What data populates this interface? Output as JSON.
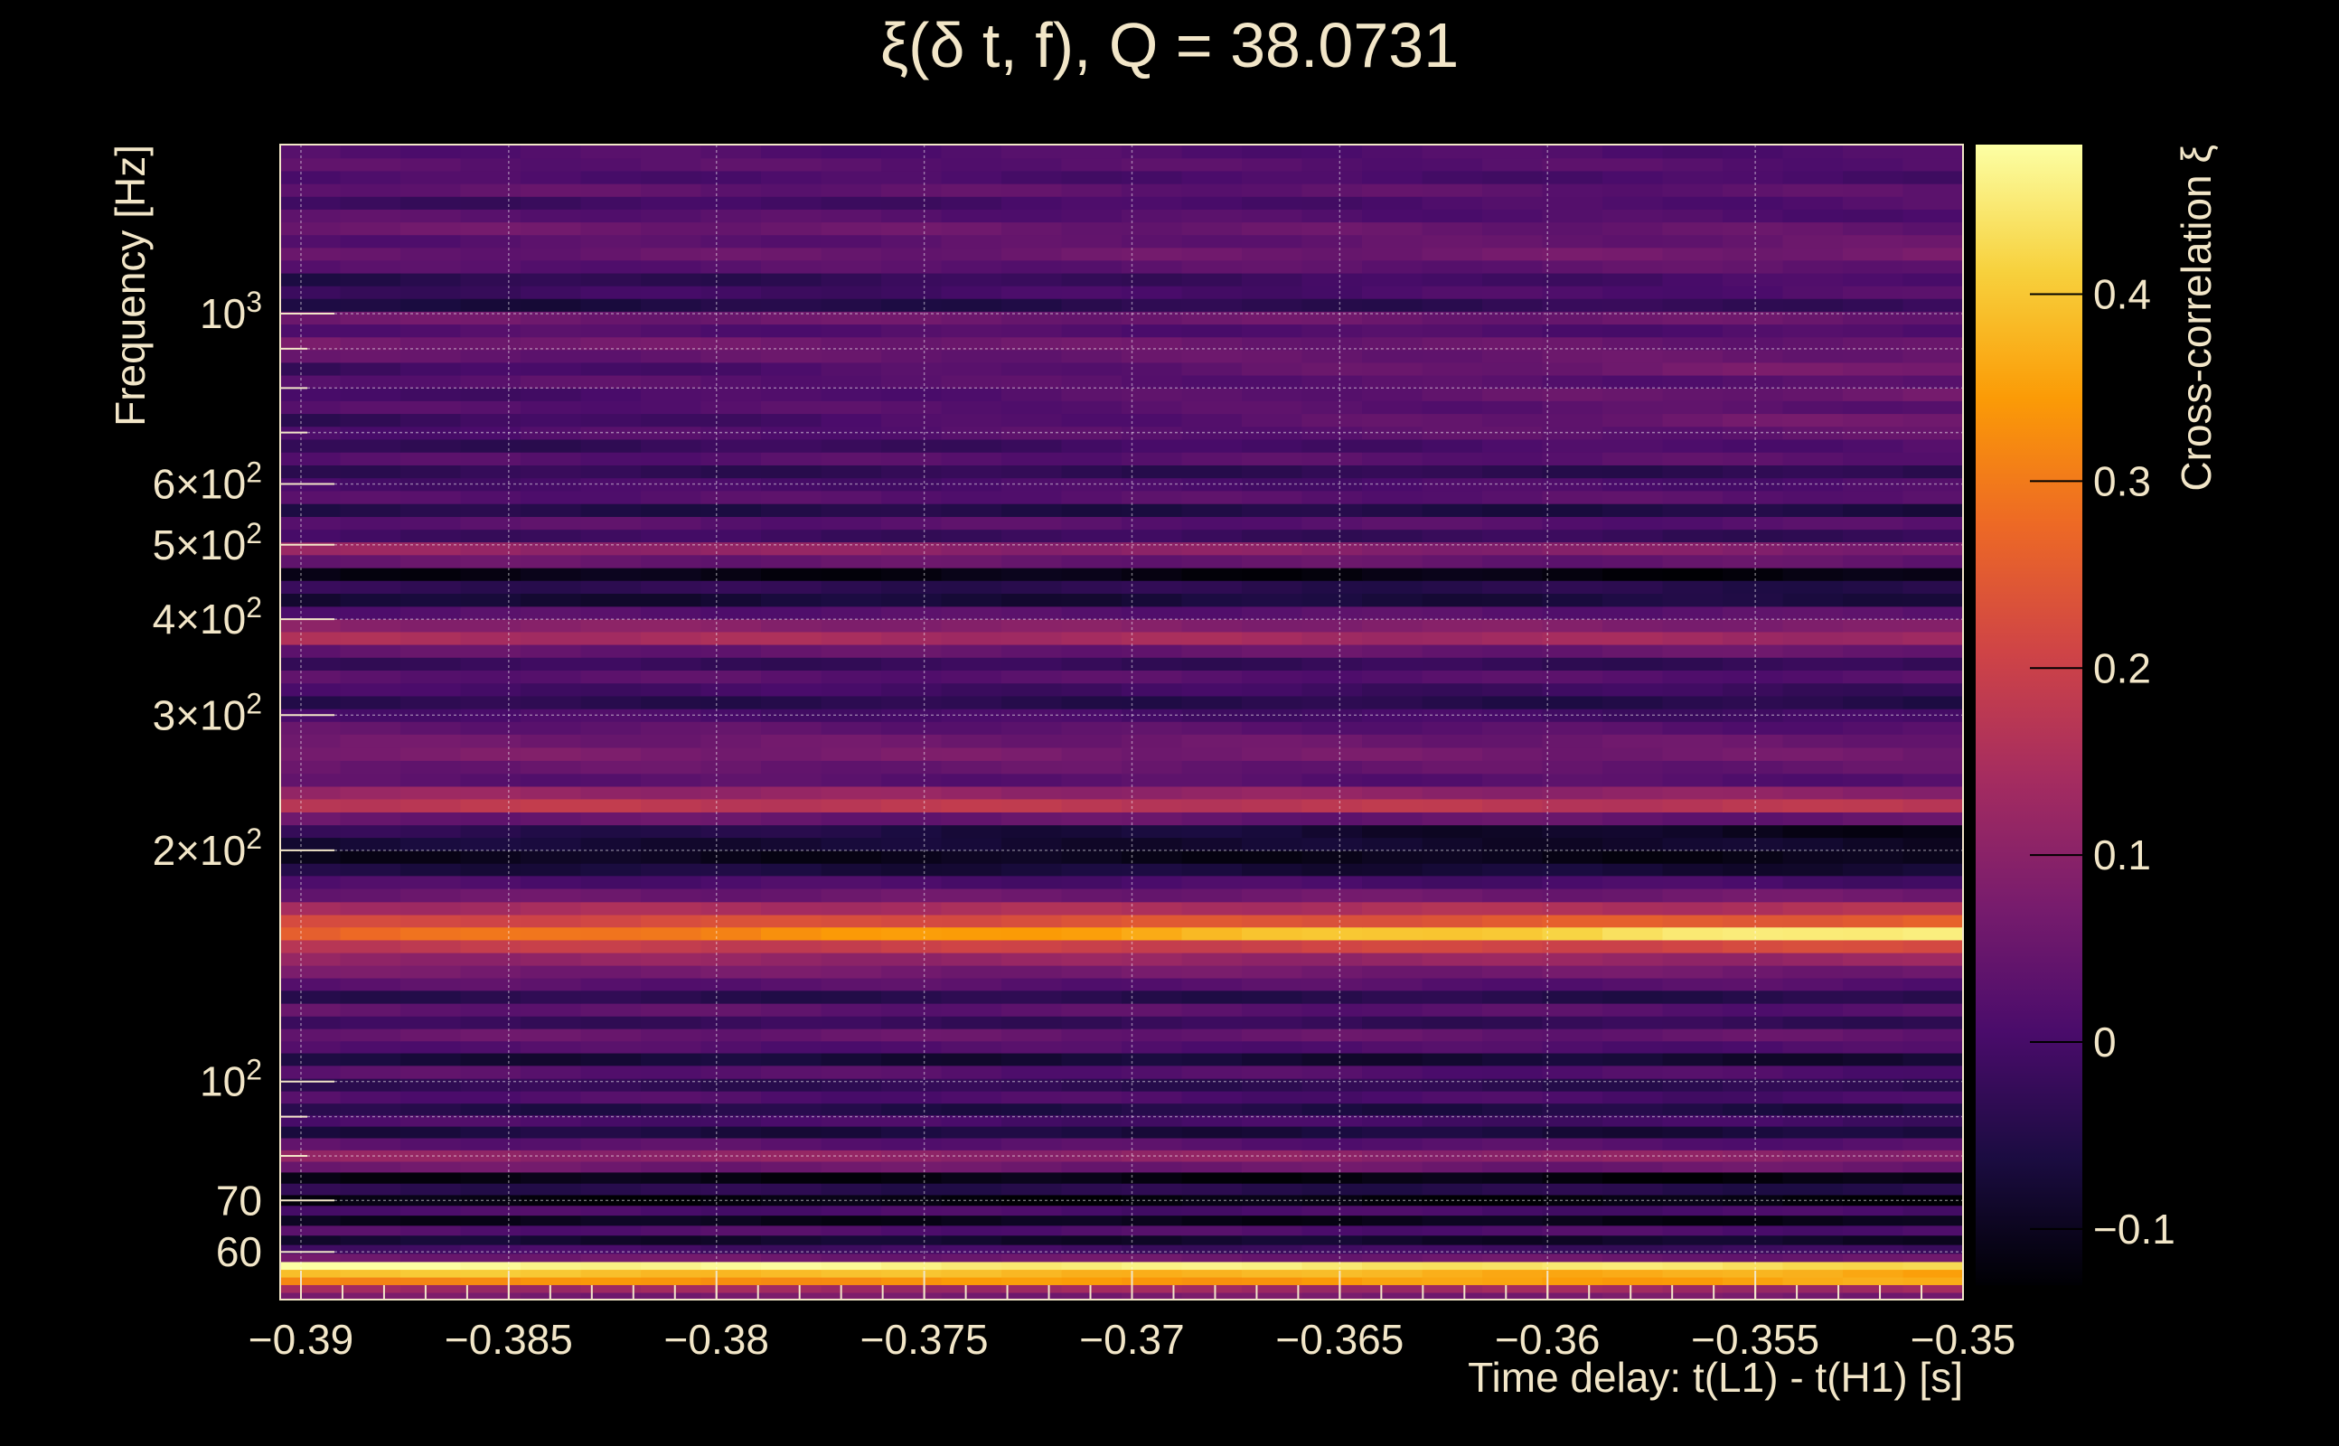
{
  "chart_data": {
    "type": "heatmap",
    "title": "ξ(δ t, f), Q = 38.0731",
    "xlabel": "Time delay: t(L1) - t(H1) [s]",
    "ylabel": "Frequency [Hz]",
    "colorbar_label": "Cross-correlation ξ",
    "xlim": [
      -0.3905,
      -0.35
    ],
    "ylim": [
      52,
      1660
    ],
    "yscale": "log",
    "grid": true,
    "x_ticks": [
      -0.39,
      -0.385,
      -0.38,
      -0.375,
      -0.37,
      -0.365,
      -0.36,
      -0.355,
      -0.35
    ],
    "x_tick_labels": [
      "−0.39",
      "−0.385",
      "−0.38",
      "−0.375",
      "−0.37",
      "−0.365",
      "−0.36",
      "−0.355",
      "−0.35"
    ],
    "y_ticks": [
      60,
      70,
      100,
      200,
      300,
      400,
      500,
      600,
      1000
    ],
    "y_tick_labels": [
      {
        "base": "60",
        "exp": ""
      },
      {
        "base": "70",
        "exp": ""
      },
      {
        "base": "10",
        "exp": "2"
      },
      {
        "base": "2×10",
        "exp": "2"
      },
      {
        "base": "3×10",
        "exp": "2"
      },
      {
        "base": "4×10",
        "exp": "2"
      },
      {
        "base": "5×10",
        "exp": "2"
      },
      {
        "base": "6×10",
        "exp": "2"
      },
      {
        "base": "10",
        "exp": "3"
      }
    ],
    "y_minor_ticks": [
      80,
      90,
      700,
      800,
      900
    ],
    "colorbar_range": [
      -0.13,
      0.48
    ],
    "colorbar_ticks": [
      -0.1,
      0,
      0.1,
      0.2,
      0.3,
      0.4
    ],
    "colorbar_tick_labels": [
      "−0.1",
      "0",
      "0.1",
      "0.2",
      "0.3",
      "0.4"
    ],
    "colormap": [
      "#000004",
      "#1b0c41",
      "#4a0c6b",
      "#781c6d",
      "#a52c60",
      "#cf4446",
      "#ed6925",
      "#fb9b06",
      "#f7d13d",
      "#fcffa4"
    ],
    "bands": [
      {
        "f": 52.5,
        "v": [
          0.07,
          0.07
        ]
      },
      {
        "f": 53.8,
        "v": [
          0.13,
          0.13
        ]
      },
      {
        "f": 55.0,
        "v": [
          0.32,
          0.36
        ]
      },
      {
        "f": 56.3,
        "v": [
          0.4,
          0.36
        ]
      },
      {
        "f": 57.6,
        "v": [
          0.48,
          0.43
        ]
      },
      {
        "f": 59.0,
        "v": [
          0.06,
          0.05
        ]
      },
      {
        "f": 60.5,
        "v": [
          0.0,
          -0.02
        ]
      },
      {
        "f": 62.2,
        "v": [
          -0.08,
          -0.09
        ]
      },
      {
        "f": 64.0,
        "v": [
          0.02,
          0.01
        ]
      },
      {
        "f": 66.0,
        "v": [
          -0.1,
          -0.11
        ]
      },
      {
        "f": 68.0,
        "v": [
          0.01,
          0.0
        ]
      },
      {
        "f": 70.0,
        "v": [
          -0.12,
          -0.12
        ]
      },
      {
        "f": 72.5,
        "v": [
          -0.04,
          -0.05
        ]
      },
      {
        "f": 75.0,
        "v": [
          -0.11,
          -0.12
        ]
      },
      {
        "f": 77.5,
        "v": [
          0.06,
          0.05
        ]
      },
      {
        "f": 80.0,
        "v": [
          0.11,
          0.1
        ]
      },
      {
        "f": 83.0,
        "v": [
          0.03,
          0.02
        ]
      },
      {
        "f": 86.0,
        "v": [
          -0.06,
          -0.07
        ]
      },
      {
        "f": 89.0,
        "v": [
          0.01,
          -0.01
        ]
      },
      {
        "f": 92.0,
        "v": [
          -0.05,
          -0.06
        ]
      },
      {
        "f": 95.5,
        "v": [
          0.02,
          0.0
        ]
      },
      {
        "f": 99.0,
        "v": [
          -0.03,
          -0.04
        ]
      },
      {
        "f": 103.0,
        "v": [
          0.03,
          0.01
        ]
      },
      {
        "f": 107.0,
        "v": [
          -0.07,
          -0.08
        ]
      },
      {
        "f": 111.0,
        "v": [
          0.02,
          0.01
        ]
      },
      {
        "f": 115.0,
        "v": [
          0.05,
          0.04
        ]
      },
      {
        "f": 119.5,
        "v": [
          -0.02,
          -0.03
        ]
      },
      {
        "f": 124.0,
        "v": [
          0.04,
          0.02
        ]
      },
      {
        "f": 129.0,
        "v": [
          -0.04,
          -0.05
        ]
      },
      {
        "f": 134.0,
        "v": [
          0.03,
          0.02
        ]
      },
      {
        "f": 139.0,
        "v": [
          0.07,
          0.06
        ]
      },
      {
        "f": 144.5,
        "v": [
          0.11,
          0.12
        ]
      },
      {
        "f": 150.0,
        "v": [
          0.18,
          0.22
        ]
      },
      {
        "f": 156.0,
        "v": [
          0.26,
          0.47
        ]
      },
      {
        "f": 162.0,
        "v": [
          0.21,
          0.26
        ]
      },
      {
        "f": 168.0,
        "v": [
          0.14,
          0.16
        ]
      },
      {
        "f": 175.0,
        "v": [
          0.05,
          0.06
        ]
      },
      {
        "f": 182.0,
        "v": [
          0.01,
          0.0
        ]
      },
      {
        "f": 189.0,
        "v": [
          -0.06,
          -0.08
        ]
      },
      {
        "f": 196.0,
        "v": [
          -0.1,
          -0.11
        ]
      },
      {
        "f": 204.0,
        "v": [
          -0.07,
          -0.09
        ]
      },
      {
        "f": 212.0,
        "v": [
          -0.03,
          -0.11
        ]
      },
      {
        "f": 220.0,
        "v": [
          0.05,
          0.04
        ]
      },
      {
        "f": 229.0,
        "v": [
          0.18,
          0.17
        ]
      },
      {
        "f": 238.0,
        "v": [
          0.12,
          0.1
        ]
      },
      {
        "f": 247.0,
        "v": [
          0.03,
          0.02
        ]
      },
      {
        "f": 257.0,
        "v": [
          0.05,
          0.04
        ]
      },
      {
        "f": 267.0,
        "v": [
          0.08,
          0.06
        ]
      },
      {
        "f": 278.0,
        "v": [
          0.06,
          0.05
        ]
      },
      {
        "f": 289.0,
        "v": [
          0.04,
          0.02
        ]
      },
      {
        "f": 300.0,
        "v": [
          0.01,
          -0.01
        ]
      },
      {
        "f": 312.0,
        "v": [
          -0.04,
          -0.05
        ]
      },
      {
        "f": 324.0,
        "v": [
          0.0,
          -0.02
        ]
      },
      {
        "f": 337.0,
        "v": [
          0.03,
          0.02
        ]
      },
      {
        "f": 350.0,
        "v": [
          -0.02,
          -0.03
        ]
      },
      {
        "f": 364.0,
        "v": [
          0.04,
          0.05
        ]
      },
      {
        "f": 378.0,
        "v": [
          0.15,
          0.13
        ]
      },
      {
        "f": 393.0,
        "v": [
          0.1,
          0.08
        ]
      },
      {
        "f": 408.0,
        "v": [
          0.02,
          0.03
        ]
      },
      {
        "f": 424.0,
        "v": [
          -0.08,
          -0.06
        ]
      },
      {
        "f": 441.0,
        "v": [
          -0.03,
          -0.05
        ]
      },
      {
        "f": 458.0,
        "v": [
          -0.11,
          -0.12
        ]
      },
      {
        "f": 476.0,
        "v": [
          0.05,
          0.04
        ]
      },
      {
        "f": 495.0,
        "v": [
          0.12,
          0.08
        ]
      },
      {
        "f": 514.0,
        "v": [
          -0.01,
          -0.03
        ]
      },
      {
        "f": 534.0,
        "v": [
          0.03,
          0.02
        ]
      },
      {
        "f": 555.0,
        "v": [
          -0.05,
          -0.06
        ]
      },
      {
        "f": 577.0,
        "v": [
          0.02,
          0.03
        ]
      },
      {
        "f": 600.0,
        "v": [
          0.0,
          0.01
        ]
      },
      {
        "f": 623.0,
        "v": [
          -0.03,
          -0.04
        ]
      },
      {
        "f": 648.0,
        "v": [
          0.02,
          0.03
        ]
      },
      {
        "f": 673.0,
        "v": [
          -0.04,
          0.02
        ]
      },
      {
        "f": 700.0,
        "v": [
          0.01,
          0.04
        ]
      },
      {
        "f": 727.0,
        "v": [
          -0.03,
          0.07
        ]
      },
      {
        "f": 756.0,
        "v": [
          0.02,
          0.03
        ]
      },
      {
        "f": 785.0,
        "v": [
          -0.01,
          0.06
        ]
      },
      {
        "f": 816.0,
        "v": [
          0.03,
          0.02
        ]
      },
      {
        "f": 848.0,
        "v": [
          -0.02,
          0.08
        ]
      },
      {
        "f": 881.0,
        "v": [
          0.04,
          0.05
        ]
      },
      {
        "f": 915.0,
        "v": [
          0.07,
          0.04
        ]
      },
      {
        "f": 951.0,
        "v": [
          0.02,
          0.01
        ]
      },
      {
        "f": 988.0,
        "v": [
          0.06,
          0.05
        ]
      },
      {
        "f": 1027.0,
        "v": [
          -0.07,
          -0.02
        ]
      },
      {
        "f": 1067.0,
        "v": [
          -0.02,
          0.02
        ]
      },
      {
        "f": 1108.0,
        "v": [
          -0.05,
          0.01
        ]
      },
      {
        "f": 1152.0,
        "v": [
          0.02,
          0.04
        ]
      },
      {
        "f": 1197.0,
        "v": [
          0.04,
          0.07
        ]
      },
      {
        "f": 1243.0,
        "v": [
          0.02,
          0.05
        ]
      },
      {
        "f": 1292.0,
        "v": [
          0.06,
          0.04
        ]
      },
      {
        "f": 1342.0,
        "v": [
          0.03,
          0.01
        ]
      },
      {
        "f": 1395.0,
        "v": [
          -0.02,
          0.02
        ]
      },
      {
        "f": 1449.0,
        "v": [
          0.04,
          0.03
        ]
      },
      {
        "f": 1506.0,
        "v": [
          0.01,
          0.0
        ]
      },
      {
        "f": 1565.0,
        "v": [
          0.03,
          0.02
        ]
      },
      {
        "f": 1626.0,
        "v": [
          0.02,
          0.01
        ]
      }
    ]
  }
}
